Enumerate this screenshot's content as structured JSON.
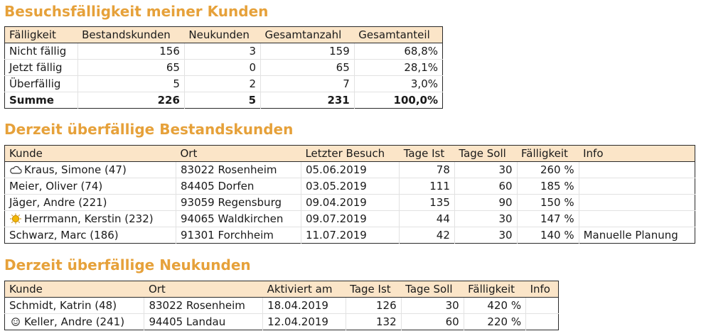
{
  "summary": {
    "title": "Besuchsfälligkeit meiner Kunden",
    "headers": [
      "Fälligkeit",
      "Bestandskunden",
      "Neukunden",
      "Gesamtanzahl",
      "Gesamtanteil"
    ],
    "rows": [
      [
        "Nicht fällig",
        "156",
        "3",
        "159",
        "68,8%"
      ],
      [
        "Jetzt fällig",
        "65",
        "0",
        "65",
        "28,1%"
      ],
      [
        "Überfällig",
        "5",
        "2",
        "7",
        "3,0%"
      ]
    ],
    "total": [
      "Summe",
      "226",
      "5",
      "231",
      "100,0%"
    ]
  },
  "existing": {
    "title": "Derzeit überfällige Bestandskunden",
    "headers": [
      "Kunde",
      "Ort",
      "Letzter Besuch",
      "Tage Ist",
      "Tage Soll",
      "Fälligkeit",
      "Info"
    ],
    "rows": [
      {
        "icon": "cloud-icon",
        "kunde": "Kraus, Simone (47)",
        "ort": "83022 Rosenheim",
        "besuch": "05.06.2019",
        "ist": "78",
        "soll": "30",
        "faellig": "260 %",
        "info": ""
      },
      {
        "icon": "",
        "kunde": "Meier, Oliver (74)",
        "ort": "84405 Dorfen",
        "besuch": "03.05.2019",
        "ist": "111",
        "soll": "60",
        "faellig": "185 %",
        "info": ""
      },
      {
        "icon": "",
        "kunde": "Jäger, Andre (221)",
        "ort": "93059 Regensburg",
        "besuch": "09.04.2019",
        "ist": "135",
        "soll": "90",
        "faellig": "150 %",
        "info": ""
      },
      {
        "icon": "sun-icon",
        "kunde": "Herrmann, Kerstin (232)",
        "ort": "94065 Waldkirchen",
        "besuch": "09.07.2019",
        "ist": "44",
        "soll": "30",
        "faellig": "147 %",
        "info": ""
      },
      {
        "icon": "",
        "kunde": "Schwarz, Marc (186)",
        "ort": "91301 Forchheim",
        "besuch": "11.07.2019",
        "ist": "42",
        "soll": "30",
        "faellig": "140 %",
        "info": "Manuelle Planung"
      }
    ]
  },
  "new": {
    "title": "Derzeit überfällige Neukunden",
    "headers": [
      "Kunde",
      "Ort",
      "Aktiviert am",
      "Tage Ist",
      "Tage Soll",
      "Fälligkeit",
      "Info"
    ],
    "rows": [
      {
        "icon": "",
        "kunde": "Schmidt, Katrin (48)",
        "ort": "83022 Rosenheim",
        "datum": "18.04.2019",
        "ist": "126",
        "soll": "30",
        "faellig": "420 %",
        "info": ""
      },
      {
        "icon": "smiley-icon",
        "kunde": "Keller, Andre (241)",
        "ort": "94405 Landau",
        "datum": "12.04.2019",
        "ist": "132",
        "soll": "60",
        "faellig": "220 %",
        "info": ""
      }
    ]
  },
  "colors": {
    "heading": "#e6a13a",
    "header_bg": "#fbe5c8",
    "sun": "#f2b705"
  }
}
